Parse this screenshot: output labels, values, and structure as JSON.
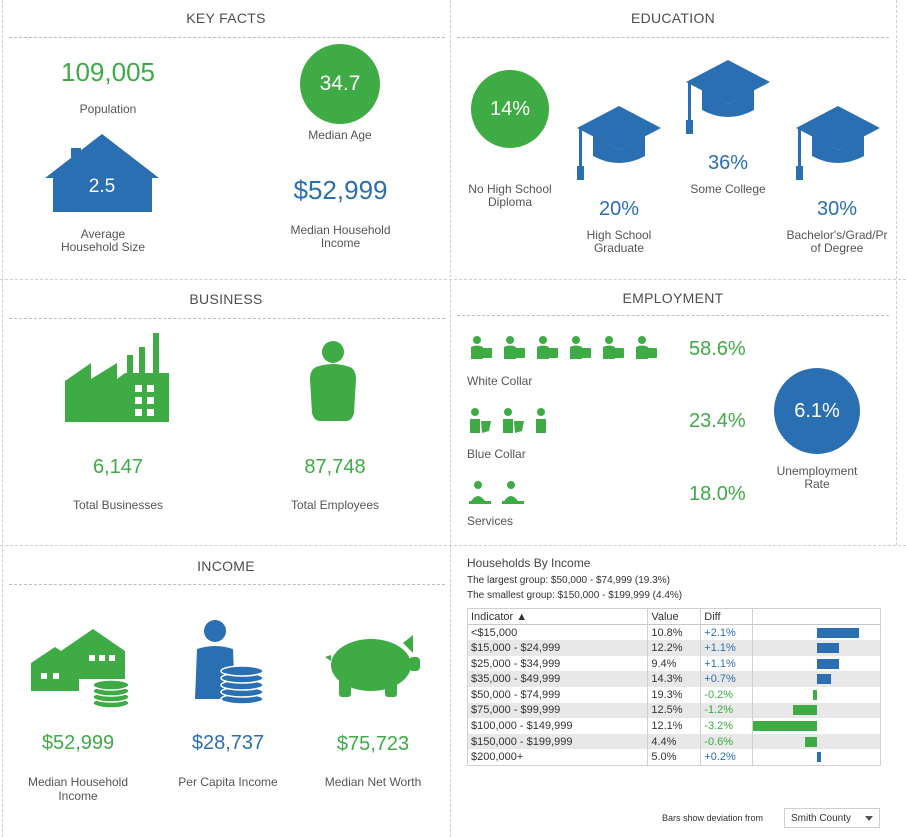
{
  "key_facts": {
    "title": "KEY FACTS",
    "population_value": "109,005",
    "population_label": "Population",
    "median_age_value": "34.7",
    "median_age_label": "Median Age",
    "household_size_value": "2.5",
    "household_size_label_1": "Average",
    "household_size_label_2": "Household Size",
    "median_income_value": "$52,999",
    "median_income_label_1": "Median Household",
    "median_income_label_2": "Income"
  },
  "education": {
    "title": "EDUCATION",
    "no_hs_value": "14%",
    "no_hs_label_1": "No High School",
    "no_hs_label_2": "Diploma",
    "hs_value": "20%",
    "hs_label_1": "High School",
    "hs_label_2": "Graduate",
    "college_value": "36%",
    "college_label": "Some College",
    "bachelor_value": "30%",
    "bachelor_label_1": "Bachelor's/Grad/Pr",
    "bachelor_label_2": "of Degree"
  },
  "business": {
    "title": "BUSINESS",
    "businesses_value": "6,147",
    "businesses_label": "Total Businesses",
    "employees_value": "87,748",
    "employees_label": "Total Employees"
  },
  "employment": {
    "title": "EMPLOYMENT",
    "white_collar_value": "58.6%",
    "white_collar_label": "White Collar",
    "blue_collar_value": "23.4%",
    "blue_collar_label": "Blue Collar",
    "services_value": "18.0%",
    "services_label": "Services",
    "unemployment_value": "6.1%",
    "unemployment_label_1": "Unemployment",
    "unemployment_label_2": "Rate"
  },
  "income": {
    "title": "INCOME",
    "median_household_value": "$52,999",
    "median_household_label_1": "Median Household",
    "median_household_label_2": "Income",
    "per_capita_value": "$28,737",
    "per_capita_label": "Per Capita Income",
    "net_worth_value": "$75,723",
    "net_worth_label": "Median Net Worth"
  },
  "households_by_income": {
    "title": "Households By Income",
    "largest_group": "The largest group: $50,000 - $74,999 (19.3%)",
    "smallest_group": "The smallest group: $150,000 - $199,999 (4.4%)",
    "col_indicator": "Indicator ▲",
    "col_value": "Value",
    "col_diff": "Diff",
    "footer_label": "Bars show deviation from",
    "compare_select": "Smith County",
    "colors": {
      "positive": "#2a6fb2",
      "negative": "#3eab45"
    }
  },
  "chart_data": {
    "type": "table",
    "title": "Households By Income",
    "rows": [
      {
        "indicator": "<$15,000",
        "value": "10.8%",
        "diff": "+2.1%",
        "diff_num": 2.1
      },
      {
        "indicator": "$15,000 - $24,999",
        "value": "12.2%",
        "diff": "+1.1%",
        "diff_num": 1.1
      },
      {
        "indicator": "$25,000 - $34,999",
        "value": "9.4%",
        "diff": "+1.1%",
        "diff_num": 1.1
      },
      {
        "indicator": "$35,000 - $49,999",
        "value": "14.3%",
        "diff": "+0.7%",
        "diff_num": 0.7
      },
      {
        "indicator": "$50,000 - $74,999",
        "value": "19.3%",
        "diff": "-0.2%",
        "diff_num": -0.2
      },
      {
        "indicator": "$75,000 - $99,999",
        "value": "12.5%",
        "diff": "-1.2%",
        "diff_num": -1.2
      },
      {
        "indicator": "$100,000 - $149,999",
        "value": "12.1%",
        "diff": "-3.2%",
        "diff_num": -3.2
      },
      {
        "indicator": "$150,000 - $199,999",
        "value": "4.4%",
        "diff": "-0.6%",
        "diff_num": -0.6
      },
      {
        "indicator": "$200,000+",
        "value": "5.0%",
        "diff": "+0.2%",
        "diff_num": 0.2
      }
    ],
    "diff_range": [
      -3.2,
      3.2
    ]
  }
}
